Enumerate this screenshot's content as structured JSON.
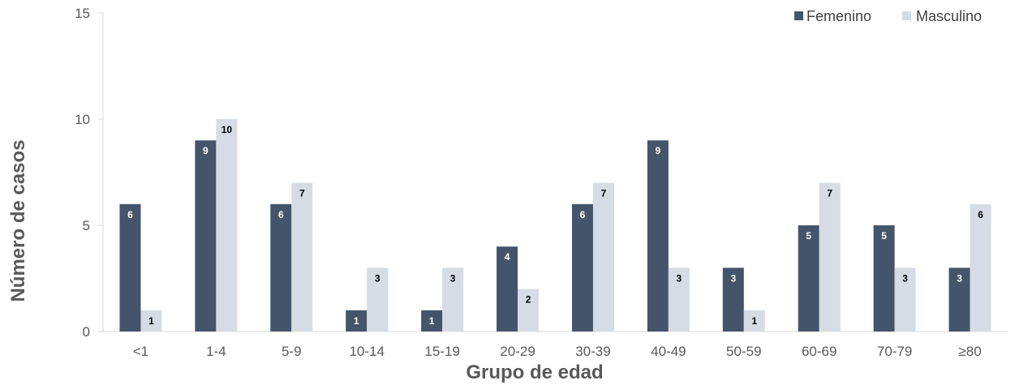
{
  "chart_data": {
    "type": "bar",
    "title": "",
    "xlabel": "Grupo de edad",
    "ylabel": "Número de casos",
    "ylim": [
      0,
      15
    ],
    "yticks": [
      0,
      5,
      10,
      15
    ],
    "grid": false,
    "legend_position": "top-right",
    "categories": [
      "<1",
      "1-4",
      "5-9",
      "10-14",
      "15-19",
      "20-29",
      "30-39",
      "40-49",
      "50-59",
      "60-69",
      "70-79",
      "≥80"
    ],
    "series": [
      {
        "name": "Femenino",
        "color": "#44546a",
        "label_color": "#ffffff",
        "values": [
          6,
          9,
          6,
          1,
          1,
          4,
          6,
          9,
          3,
          5,
          5,
          3
        ]
      },
      {
        "name": "Masculino",
        "color": "#d6dce5",
        "label_color": "#000000",
        "values": [
          1,
          10,
          7,
          3,
          3,
          2,
          7,
          3,
          1,
          7,
          3,
          6
        ]
      }
    ]
  }
}
